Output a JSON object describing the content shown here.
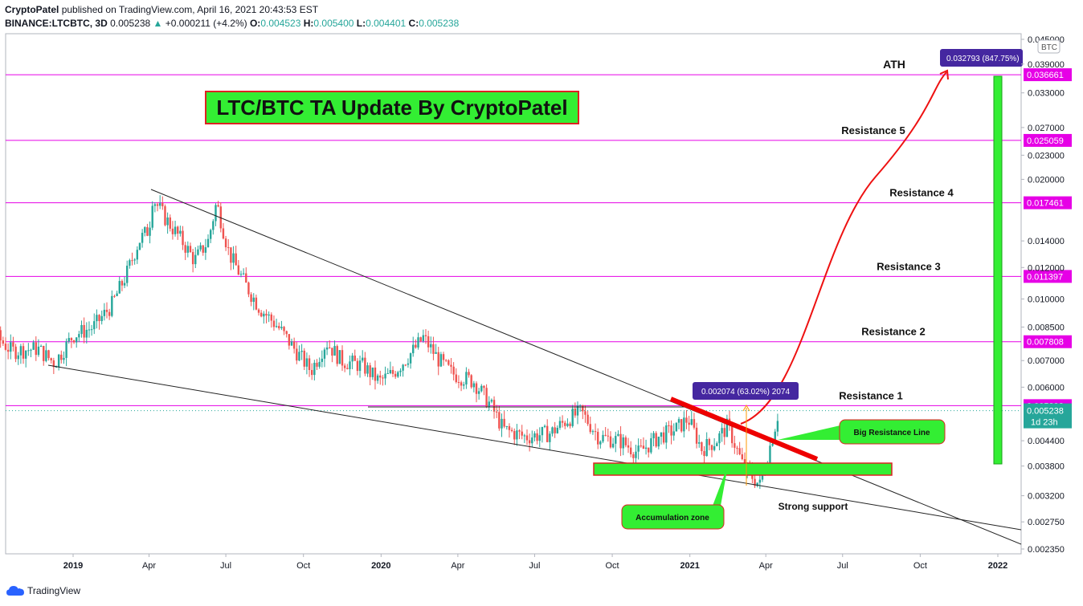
{
  "header": {
    "author": "CryptoPatel",
    "published_text": "published on TradingView.com, April 16, 2021 20:43:53 EST",
    "symbol": "BINANCE:LTCBTC, 3D",
    "last": "0.005238",
    "change": "+0.000211 (+4.2%)",
    "open_label": "O:",
    "open": "0.004523",
    "high_label": "H:",
    "high": "0.005400",
    "low_label": "L:",
    "low": "0.004401",
    "close_label": "C:",
    "close": "0.005238"
  },
  "colors": {
    "up": "#26a69a",
    "down": "#ef5350",
    "magenta": "#e600e6",
    "green_box": "#33ee33",
    "red_line": "#ee0000",
    "purple_label": "#4527a0"
  },
  "chart_data": {
    "type": "candlestick",
    "x_range": [
      "2018-08",
      "2022-02"
    ],
    "x_ticks": [
      "2019",
      "Apr",
      "Jul",
      "Oct",
      "2020",
      "Apr",
      "Jul",
      "Oct",
      "2021",
      "Apr",
      "Jul",
      "Oct",
      "2022"
    ],
    "y_scale": "log",
    "y_range": [
      0.0022,
      0.046
    ],
    "y_ticks": [
      "0.045000",
      "0.039000",
      "0.033000",
      "0.027000",
      "0.023000",
      "0.020000",
      "0.014000",
      "0.012000",
      "0.010000",
      "0.008500",
      "0.007000",
      "0.006000",
      "0.004400",
      "0.003800",
      "0.003200",
      "0.002750",
      "0.002350"
    ],
    "axis_unit": "BTC",
    "current_price": "0.005238",
    "countdown": "1d 23h",
    "levels": [
      {
        "name": "ATH",
        "value": "0.036661"
      },
      {
        "name": "Resistance 5",
        "value": "0.025059"
      },
      {
        "name": "Resistance 4",
        "value": "0.017461"
      },
      {
        "name": "Resistance 3",
        "value": "0.011397"
      },
      {
        "name": "Resistance 2",
        "value": "0.007808"
      },
      {
        "name": "Resistance 1",
        "value": "0.005392"
      }
    ],
    "price_path": [
      [
        "2018-08-05",
        0.0084
      ],
      [
        "2018-09-01",
        0.0078
      ],
      [
        "2018-10-01",
        0.0081
      ],
      [
        "2018-10-20",
        0.0074
      ],
      [
        "2018-11-20",
        0.0075
      ],
      [
        "2018-12-10",
        0.0069
      ],
      [
        "2019-01-01",
        0.0081
      ],
      [
        "2019-01-25",
        0.0085
      ],
      [
        "2019-02-15",
        0.0096
      ],
      [
        "2019-03-05",
        0.0115
      ],
      [
        "2019-03-20",
        0.014
      ],
      [
        "2019-04-01",
        0.015
      ],
      [
        "2019-04-05",
        0.018
      ],
      [
        "2019-04-20",
        0.016
      ],
      [
        "2019-05-10",
        0.014
      ],
      [
        "2019-05-25",
        0.0125
      ],
      [
        "2019-06-10",
        0.014
      ],
      [
        "2019-06-20",
        0.0175
      ],
      [
        "2019-07-05",
        0.013
      ],
      [
        "2019-07-25",
        0.0108
      ],
      [
        "2019-08-10",
        0.0095
      ],
      [
        "2019-09-01",
        0.0085
      ],
      [
        "2019-09-20",
        0.0075
      ],
      [
        "2019-10-10",
        0.0066
      ],
      [
        "2019-10-28",
        0.0078
      ],
      [
        "2019-11-15",
        0.007
      ],
      [
        "2019-12-10",
        0.0068
      ],
      [
        "2019-12-30",
        0.0062
      ],
      [
        "2020-01-15",
        0.0065
      ],
      [
        "2020-02-10",
        0.0075
      ],
      [
        "2020-02-20",
        0.008
      ],
      [
        "2020-03-10",
        0.007
      ],
      [
        "2020-03-25",
        0.0065
      ],
      [
        "2020-04-20",
        0.0062
      ],
      [
        "2020-05-10",
        0.0054
      ],
      [
        "2020-05-25",
        0.0047
      ],
      [
        "2020-06-20",
        0.0045
      ],
      [
        "2020-07-20",
        0.0046
      ],
      [
        "2020-08-10",
        0.005
      ],
      [
        "2020-08-25",
        0.0052
      ],
      [
        "2020-09-15",
        0.0045
      ],
      [
        "2020-10-10",
        0.0044
      ],
      [
        "2020-11-01",
        0.0041
      ],
      [
        "2020-11-25",
        0.0045
      ],
      [
        "2020-12-15",
        0.0047
      ],
      [
        "2020-12-30",
        0.005
      ],
      [
        "2021-01-15",
        0.0042
      ],
      [
        "2021-02-01",
        0.0044
      ],
      [
        "2021-02-15",
        0.0048
      ],
      [
        "2021-03-05",
        0.0038
      ],
      [
        "2021-03-25",
        0.0034
      ],
      [
        "2021-04-01",
        0.0039
      ],
      [
        "2021-04-09",
        0.0045
      ],
      [
        "2021-04-16",
        0.0052
      ]
    ],
    "projection": {
      "from_value": "0.002074 (63.02%) 2074",
      "to_value": "0.032793 (847.75%)"
    }
  },
  "annotations": {
    "title": "LTC/BTC TA Update By CryptoPatel",
    "big_resistance": "Big Resistance Line",
    "accumulation": "Accumulation zone",
    "strong_support": "Strong support",
    "measure_label": "0.002074 (63.02%) 2074",
    "target_label": "0.032793 (847.75%)"
  },
  "footer": {
    "brand": "TradingView"
  }
}
